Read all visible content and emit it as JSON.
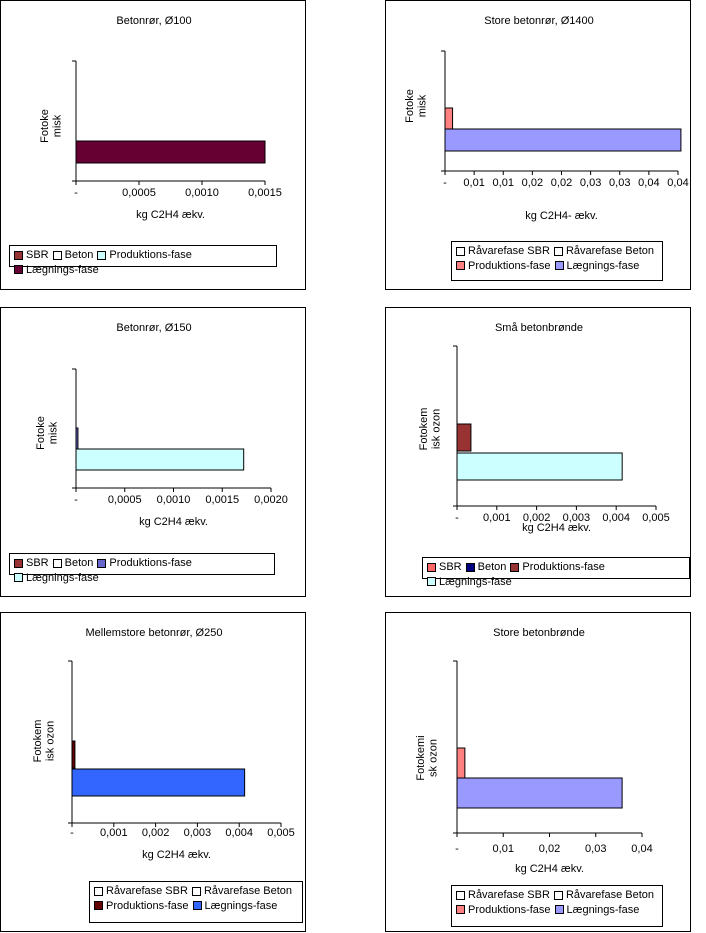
{
  "chart_data": [
    {
      "type": "bar",
      "title": "Betonrør, Ø100",
      "category_label": "Fotoke\nmisk",
      "xlabel": "kg C2H4 ækv.",
      "xlim": [
        0,
        0.0015
      ],
      "ticks": [
        "-",
        "0,0005",
        "0,0010",
        "0,0015"
      ],
      "legend_rows": [
        [
          "SBR",
          "Beton",
          "Produktions-fase",
          "Lægnings-fase"
        ]
      ],
      "series": [
        {
          "name": "SBR",
          "value": 0,
          "color": "#993333"
        },
        {
          "name": "Beton",
          "value": 0,
          "color": "#ffffff"
        },
        {
          "name": "Produktions-fase",
          "value": 0,
          "color": "#ccffff"
        },
        {
          "name": "Lægnings-fase",
          "value": 0.0015,
          "color": "#660033"
        }
      ]
    },
    {
      "type": "bar",
      "title": "Store betonrør, Ø1400",
      "category_label": "Fotoke\nmisk",
      "xlabel": "kg C2H4- ækv.",
      "xlim": [
        0,
        0.04
      ],
      "ticks": [
        "-",
        "0,01",
        "0,01",
        "0,02",
        "0,02",
        "0,03",
        "0,03",
        "0,04",
        "0,04"
      ],
      "legend_rows": [
        [
          "Råvarefase SBR",
          "Råvarefase Beton"
        ],
        [
          "Produktions-fase",
          "Lægnings-fase"
        ]
      ],
      "series": [
        {
          "name": "Råvarefase SBR",
          "value": 0,
          "color": "#ffffff"
        },
        {
          "name": "Råvarefase Beton",
          "value": 0,
          "color": "#ffffff"
        },
        {
          "name": "Produktions-fase",
          "value": 0.0013,
          "color": "#ff8080"
        },
        {
          "name": "Lægnings-fase",
          "value": 0.0405,
          "color": "#9999ff"
        }
      ]
    },
    {
      "type": "bar",
      "title": "Betonrør, Ø150",
      "category_label": "Fotoke\nmisk",
      "xlabel": "kg C2H4 ækv.",
      "xlim": [
        0,
        0.002
      ],
      "ticks": [
        "-",
        "0,0005",
        "0,0010",
        "0,0015",
        "0,0020"
      ],
      "legend_rows": [
        [
          "SBR",
          "Beton",
          "Produktions-fase",
          "Lægnings-fase"
        ]
      ],
      "series": [
        {
          "name": "SBR",
          "value": 0,
          "color": "#993333"
        },
        {
          "name": "Beton",
          "value": 0,
          "color": "#ffffff"
        },
        {
          "name": "Produktions-fase",
          "value": 2e-05,
          "color": "#6666cc"
        },
        {
          "name": "Lægnings-fase",
          "value": 0.00172,
          "color": "#ccffff"
        }
      ]
    },
    {
      "type": "bar",
      "title": "Små betonbrønde",
      "category_label": "Fotokem\nisk ozon",
      "xlabel": "kg C2H4 ækv.",
      "xlim": [
        0,
        0.005
      ],
      "ticks": [
        "-",
        "0,001",
        "0,002",
        "0,003",
        "0,004",
        "0,005"
      ],
      "legend_rows": [
        [
          "SBR",
          "Beton",
          "Produktions-fase",
          "Lægnings-fase"
        ]
      ],
      "series": [
        {
          "name": "SBR",
          "value": 0,
          "color": "#ff6666"
        },
        {
          "name": "Beton",
          "value": 0,
          "color": "#000080"
        },
        {
          "name": "Produktions-fase",
          "value": 0.00035,
          "color": "#993333"
        },
        {
          "name": "Lægnings-fase",
          "value": 0.00415,
          "color": "#ccffff"
        }
      ]
    },
    {
      "type": "bar",
      "title": "Mellemstore betonrør, Ø250",
      "category_label": "Fotokem\nisk ozon",
      "xlabel": "kg C2H4 ækv.",
      "xlim": [
        0,
        0.005
      ],
      "ticks": [
        "-",
        "0,001",
        "0,002",
        "0,003",
        "0,004",
        "0,005"
      ],
      "legend_rows": [
        [
          "Råvarefase SBR",
          "Råvarefase Beton"
        ],
        [
          "Produktions-fase",
          "Lægnings-fase"
        ]
      ],
      "series": [
        {
          "name": "Råvarefase SBR",
          "value": 0,
          "color": "#ffffff"
        },
        {
          "name": "Råvarefase Beton",
          "value": 0,
          "color": "#ffffff"
        },
        {
          "name": "Produktions-fase",
          "value": 7e-05,
          "color": "#660000"
        },
        {
          "name": "Lægnings-fase",
          "value": 0.00413,
          "color": "#3366ff"
        }
      ]
    },
    {
      "type": "bar",
      "title": "Store betonbrønde",
      "category_label": "Fotokemi\nsk ozon",
      "xlabel": "kg C2H4 ækv.",
      "xlim": [
        0,
        0.04
      ],
      "ticks": [
        "-",
        "0,01",
        "0,02",
        "0,03",
        "0,04"
      ],
      "legend_rows": [
        [
          "Råvarefase SBR",
          "Råvarefase Beton"
        ],
        [
          "Produktions-fase",
          "Lægnings-fase"
        ]
      ],
      "series": [
        {
          "name": "Råvarefase SBR",
          "value": 0,
          "color": "#ffffff"
        },
        {
          "name": "Råvarefase Beton",
          "value": 0,
          "color": "#ffffff"
        },
        {
          "name": "Produktions-fase",
          "value": 0.0017,
          "color": "#ff8080"
        },
        {
          "name": "Lægnings-fase",
          "value": 0.0357,
          "color": "#9999ff"
        }
      ]
    }
  ]
}
